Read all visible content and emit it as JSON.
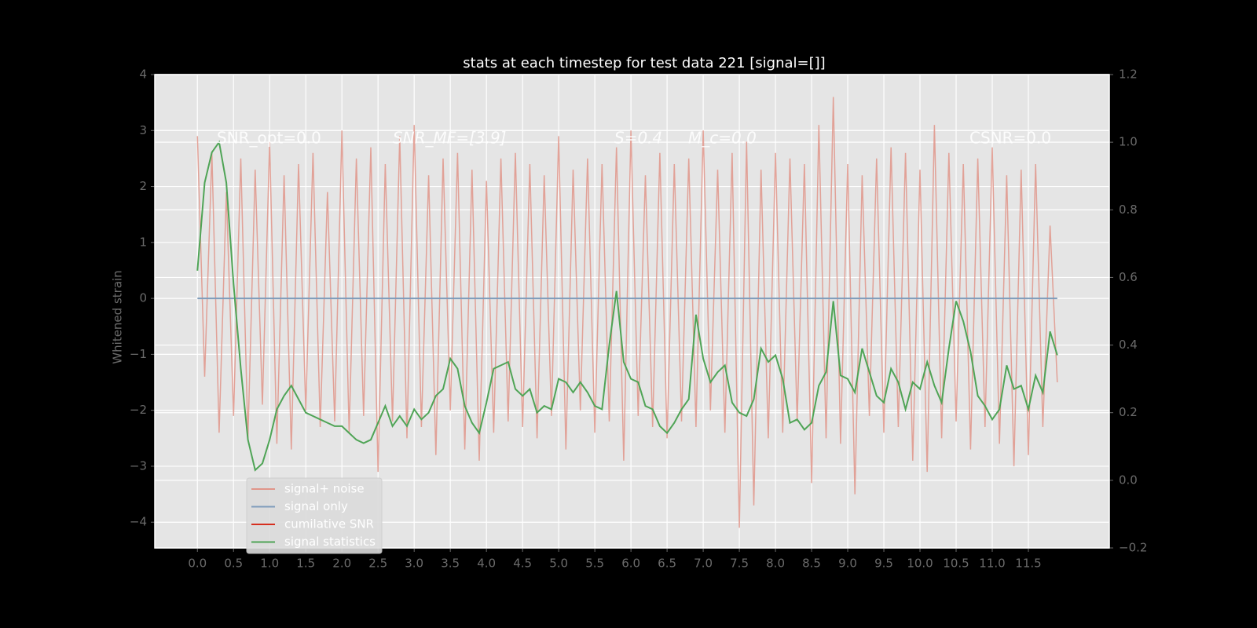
{
  "chart_data": {
    "type": "line",
    "title": "stats at each timestep for test data 221 [signal=[]]",
    "ylabel": "Whitened strain",
    "annotations": [
      "SNR_opt=0.0",
      "SNR_MF=[3.9]",
      "S=0.4",
      "M_c=0.0",
      "CSNR=0.0"
    ],
    "x": [
      0,
      0.1,
      0.2,
      0.3,
      0.4,
      0.5,
      0.6,
      0.7,
      0.8,
      0.9,
      1,
      1.1,
      1.2,
      1.3,
      1.4,
      1.5,
      1.6,
      1.7,
      1.8,
      1.9,
      2,
      2.1,
      2.2,
      2.3,
      2.4,
      2.5,
      2.6,
      2.7,
      2.8,
      2.9,
      3,
      3.1,
      3.2,
      3.3,
      3.4,
      3.5,
      3.6,
      3.7,
      3.8,
      3.9,
      4,
      4.1,
      4.2,
      4.3,
      4.4,
      4.5,
      4.6,
      4.7,
      4.8,
      4.9,
      5,
      5.1,
      5.2,
      5.3,
      5.4,
      5.5,
      5.6,
      5.7,
      5.8,
      5.9,
      6,
      6.1,
      6.2,
      6.3,
      6.4,
      6.5,
      6.6,
      6.7,
      6.8,
      6.9,
      7,
      7.1,
      7.2,
      7.3,
      7.4,
      7.5,
      7.6,
      7.7,
      7.8,
      7.9,
      8,
      8.1,
      8.2,
      8.3,
      8.4,
      8.5,
      8.6,
      8.7,
      8.8,
      8.9,
      9,
      9.1,
      9.2,
      9.3,
      9.4,
      9.5,
      9.6,
      9.7,
      9.8,
      9.9,
      10,
      10.1,
      10.2,
      10.3,
      10.4,
      10.5,
      10.6,
      10.7,
      10.8,
      10.9,
      11,
      11.1,
      11.2,
      11.3,
      11.4,
      11.5,
      11.6,
      11.7,
      11.8,
      11.9
    ],
    "series": [
      {
        "name": "signal+ noise",
        "color": "#e0958a",
        "values": [
          2.9,
          -1.4,
          2.6,
          -2.4,
          1.9,
          -2.1,
          2.5,
          -2.5,
          2.3,
          -1.9,
          2.8,
          -2.6,
          2.2,
          -2.7,
          2.4,
          -2.0,
          2.6,
          -2.3,
          1.9,
          -2.2,
          3.0,
          -2.4,
          2.5,
          -2.1,
          2.7,
          -3.1,
          2.4,
          -2.2,
          2.9,
          -2.5,
          3.1,
          -2.3,
          2.2,
          -2.8,
          2.5,
          -2.0,
          2.6,
          -2.7,
          2.3,
          -2.9,
          2.1,
          -2.4,
          2.5,
          -2.2,
          2.6,
          -2.3,
          2.4,
          -2.5,
          2.2,
          -2.1,
          2.9,
          -2.7,
          2.3,
          -2.0,
          2.5,
          -2.4,
          2.4,
          -2.2,
          2.7,
          -2.9,
          3.0,
          -2.1,
          2.2,
          -2.3,
          2.6,
          -2.5,
          2.4,
          -2.2,
          2.5,
          -2.3,
          3.0,
          -2.0,
          2.3,
          -2.4,
          2.6,
          -4.1,
          2.8,
          -3.7,
          2.3,
          -2.5,
          2.6,
          -2.4,
          2.5,
          -2.2,
          2.4,
          -3.3,
          3.1,
          -2.5,
          3.6,
          -2.6,
          2.4,
          -3.5,
          2.2,
          -2.1,
          2.5,
          -2.4,
          2.7,
          -2.3,
          2.6,
          -2.9,
          2.3,
          -3.1,
          3.1,
          -2.5,
          2.6,
          -2.2,
          2.4,
          -2.7,
          2.5,
          -2.3,
          2.7,
          -2.6,
          2.2,
          -3.0,
          2.3,
          -2.8,
          2.4,
          -2.3,
          1.3,
          -1.5
        ]
      },
      {
        "name": "signal only",
        "color": "#7f9cbb",
        "values": [
          0,
          0,
          0,
          0,
          0,
          0,
          0,
          0,
          0,
          0,
          0,
          0,
          0,
          0,
          0,
          0,
          0,
          0,
          0,
          0,
          0,
          0,
          0,
          0,
          0,
          0,
          0,
          0,
          0,
          0,
          0,
          0,
          0,
          0,
          0,
          0,
          0,
          0,
          0,
          0,
          0,
          0,
          0,
          0,
          0,
          0,
          0,
          0,
          0,
          0,
          0,
          0,
          0,
          0,
          0,
          0,
          0,
          0,
          0,
          0,
          0,
          0,
          0,
          0,
          0,
          0,
          0,
          0,
          0,
          0,
          0,
          0,
          0,
          0,
          0,
          0,
          0,
          0,
          0,
          0,
          0,
          0,
          0,
          0,
          0,
          0,
          0,
          0,
          0,
          0,
          0,
          0,
          0,
          0,
          0,
          0,
          0,
          0,
          0,
          0,
          0,
          0,
          0,
          0,
          0,
          0,
          0,
          0,
          0,
          0,
          0,
          0,
          0,
          0,
          0,
          0,
          0,
          0,
          0,
          0
        ]
      },
      {
        "name": "cumilative SNR",
        "color": "#d62f1f",
        "axis": "y2",
        "values": [
          null,
          null,
          null,
          null,
          null,
          null,
          null,
          null,
          null,
          null,
          null,
          null,
          null,
          null,
          null,
          null,
          null,
          null,
          null,
          null,
          null,
          null,
          null,
          null,
          null,
          null,
          null,
          null,
          null,
          null,
          null,
          null,
          null,
          null,
          null,
          null,
          null,
          null,
          null,
          null,
          null,
          null,
          null,
          null,
          null,
          null,
          null,
          null,
          null,
          null,
          null,
          null,
          null,
          null,
          null,
          null,
          null,
          null,
          null,
          null,
          null,
          null,
          null,
          null,
          null,
          null,
          null,
          null,
          null,
          null,
          null,
          null,
          null,
          null,
          null,
          null,
          null,
          null,
          null,
          null,
          null,
          null,
          null,
          null,
          null,
          null,
          null,
          null,
          null,
          null,
          null,
          null,
          null,
          null,
          null,
          null,
          null,
          null,
          null,
          null,
          null,
          null,
          null,
          null,
          null,
          null,
          null,
          null,
          null,
          null,
          null,
          null,
          null,
          null,
          null,
          null,
          null,
          null,
          null,
          null
        ]
      },
      {
        "name": "signal statistics",
        "color": "#4fa456",
        "axis": "y2",
        "values": [
          0.62,
          0.88,
          0.97,
          1.0,
          0.88,
          0.58,
          0.33,
          0.12,
          0.03,
          0.05,
          0.12,
          0.21,
          0.25,
          0.28,
          0.24,
          0.2,
          0.19,
          0.18,
          0.17,
          0.16,
          0.16,
          0.14,
          0.12,
          0.11,
          0.12,
          0.17,
          0.22,
          0.16,
          0.19,
          0.16,
          0.21,
          0.18,
          0.2,
          0.25,
          0.27,
          0.36,
          0.33,
          0.22,
          0.17,
          0.14,
          0.23,
          0.33,
          0.34,
          0.35,
          0.27,
          0.25,
          0.27,
          0.2,
          0.22,
          0.21,
          0.3,
          0.29,
          0.26,
          0.29,
          0.26,
          0.22,
          0.21,
          0.4,
          0.56,
          0.35,
          0.3,
          0.29,
          0.22,
          0.21,
          0.16,
          0.14,
          0.17,
          0.21,
          0.24,
          0.49,
          0.36,
          0.29,
          0.32,
          0.34,
          0.23,
          0.2,
          0.19,
          0.24,
          0.39,
          0.35,
          0.37,
          0.3,
          0.17,
          0.18,
          0.15,
          0.17,
          0.28,
          0.32,
          0.53,
          0.31,
          0.3,
          0.26,
          0.39,
          0.32,
          0.25,
          0.23,
          0.33,
          0.29,
          0.21,
          0.29,
          0.27,
          0.35,
          0.28,
          0.23,
          0.39,
          0.53,
          0.47,
          0.38,
          0.25,
          0.22,
          0.18,
          0.21,
          0.34,
          0.27,
          0.28,
          0.21,
          0.31,
          0.26,
          0.44,
          0.37
        ]
      }
    ],
    "xlim": [
      -0.59,
      12.62
    ],
    "xticks": [
      {
        "value": 0,
        "label": "0.0"
      },
      0.5,
      {
        "value": 1,
        "label": "1.0"
      },
      1.5,
      {
        "value": 2,
        "label": "2.0"
      },
      2.5,
      {
        "value": 3,
        "label": "3.0"
      },
      3.5,
      {
        "value": 4,
        "label": "4.0"
      },
      4.5,
      {
        "value": 5,
        "label": "5.0"
      },
      5.5,
      {
        "value": 6,
        "label": "6.0"
      },
      6.5,
      {
        "value": 7,
        "label": "7.0"
      },
      7.5,
      {
        "value": 8,
        "label": "8.0"
      },
      8.5,
      {
        "value": 9,
        "label": "9.0"
      },
      9.5,
      {
        "value": 10,
        "label": "10.0"
      },
      10.5,
      {
        "value": 11,
        "label": "11.0"
      },
      11.5
    ],
    "ylim": [
      -4.46,
      4
    ],
    "yticks": [
      {
        "value": -4,
        "label": "−4"
      },
      {
        "value": -3,
        "label": "−3"
      },
      {
        "value": -2,
        "label": "−2"
      },
      {
        "value": -1,
        "label": "−1"
      },
      0,
      1,
      2,
      3,
      4
    ],
    "y2lim": [
      -0.2,
      1.2
    ],
    "y2ticks": [
      {
        "value": -0.2,
        "label": "−0.2"
      },
      {
        "value": 0,
        "label": "0.0"
      },
      0.2,
      0.4,
      0.6,
      0.8,
      {
        "value": 1,
        "label": "1.0"
      },
      1.2
    ],
    "grid": true,
    "legend": "lower left"
  }
}
